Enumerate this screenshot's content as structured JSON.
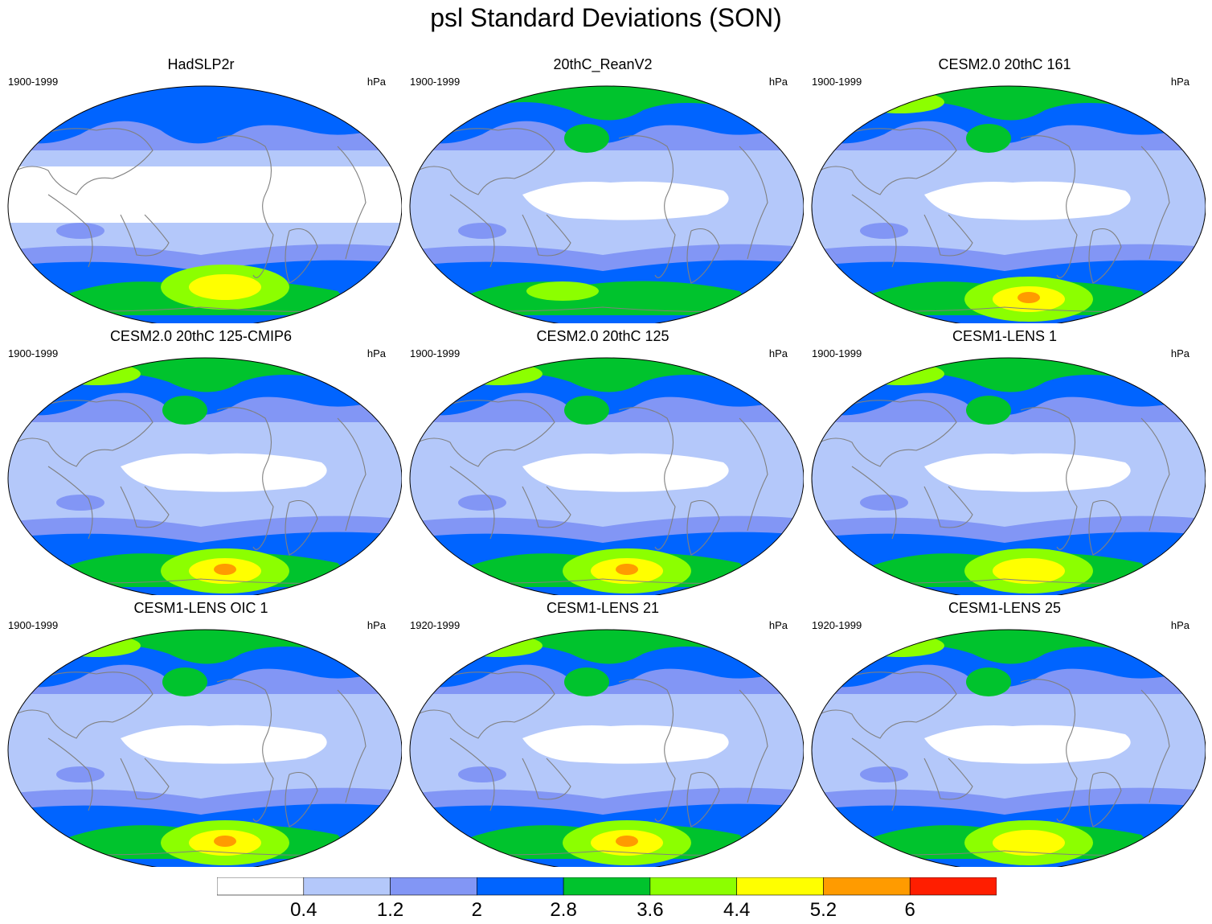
{
  "title": "psl Standard Deviations (SON)",
  "unit": "hPa",
  "panels": [
    {
      "title": "HadSLP2r",
      "period": "1900-1999",
      "style": "had"
    },
    {
      "title": "20thC_ReanV2",
      "period": "1900-1999",
      "style": "rean"
    },
    {
      "title": "CESM2.0 20thC 161",
      "period": "1900-1999",
      "style": "cesm2"
    },
    {
      "title": "CESM2.0 20thC 125-CMIP6",
      "period": "1900-1999",
      "style": "cesm2"
    },
    {
      "title": "CESM2.0 20thC 125",
      "period": "1900-1999",
      "style": "cesm2"
    },
    {
      "title": "CESM1-LENS 1",
      "period": "1900-1999",
      "style": "lens"
    },
    {
      "title": "CESM1-LENS OIC 1",
      "period": "1900-1999",
      "style": "lens_hot"
    },
    {
      "title": "CESM1-LENS 21",
      "period": "1920-1999",
      "style": "lens_hot"
    },
    {
      "title": "CESM1-LENS 25",
      "period": "1920-1999",
      "style": "lens"
    }
  ],
  "colorbar": {
    "colors": [
      "#ffffff",
      "#b4c8fa",
      "#8296f5",
      "#0064ff",
      "#00c32d",
      "#8cff00",
      "#ffff00",
      "#ff9b00",
      "#ff1e00"
    ],
    "labels": [
      "0.4",
      "1.2",
      "2",
      "2.8",
      "3.6",
      "4.4",
      "5.2",
      "6"
    ]
  }
}
